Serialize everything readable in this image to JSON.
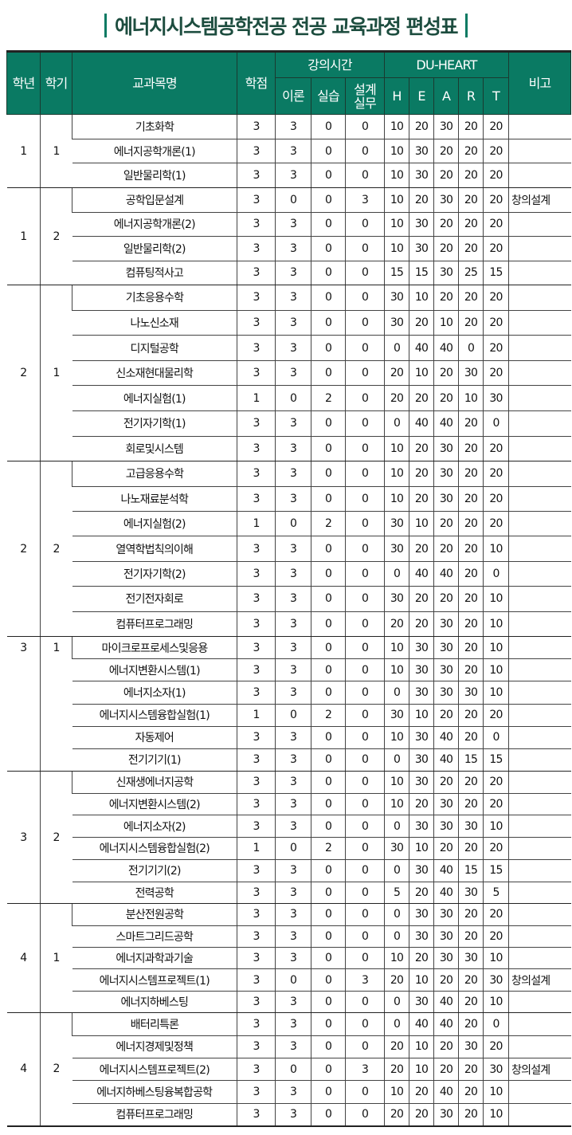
{
  "title": "에너지시스템공학전공 전공 교육과정 편성표",
  "colors": {
    "header_bg": "#0a7a63",
    "title": "#1d4d3f"
  },
  "headers": {
    "year": "학년",
    "semester": "학기",
    "course": "교과목명",
    "credits": "학점",
    "lecture_hours": "강의시간",
    "theory": "이론",
    "practice": "실습",
    "design": "설계실무",
    "du_heart": "DU-HEART",
    "H": "H",
    "E": "E",
    "A": "A",
    "R": "R",
    "T": "T",
    "note": "비고"
  },
  "groups": [
    {
      "year": "1",
      "semester": "1",
      "rows": [
        [
          "기초화학",
          "3",
          "3",
          "0",
          "0",
          "10",
          "20",
          "30",
          "20",
          "20",
          ""
        ],
        [
          "에너지공학개론(1)",
          "3",
          "3",
          "0",
          "0",
          "10",
          "30",
          "20",
          "20",
          "20",
          ""
        ],
        [
          "일반물리학(1)",
          "3",
          "3",
          "0",
          "0",
          "10",
          "30",
          "20",
          "20",
          "20",
          ""
        ]
      ]
    },
    {
      "year": "1",
      "semester": "2",
      "rows": [
        [
          "공학입문설계",
          "3",
          "0",
          "0",
          "3",
          "10",
          "20",
          "30",
          "20",
          "20",
          "창의설계"
        ],
        [
          "에너지공학개론(2)",
          "3",
          "3",
          "0",
          "0",
          "10",
          "30",
          "20",
          "20",
          "20",
          ""
        ],
        [
          "일반물리학(2)",
          "3",
          "3",
          "0",
          "0",
          "10",
          "30",
          "20",
          "20",
          "20",
          ""
        ],
        [
          "컴퓨팅적사고",
          "3",
          "3",
          "0",
          "0",
          "15",
          "15",
          "30",
          "25",
          "15",
          ""
        ]
      ]
    },
    {
      "year": "2",
      "semester": "1",
      "rows": [
        [
          "기초응용수학",
          "3",
          "3",
          "0",
          "0",
          "30",
          "10",
          "20",
          "20",
          "20",
          ""
        ],
        [
          "나노신소재",
          "3",
          "3",
          "0",
          "0",
          "30",
          "20",
          "10",
          "20",
          "20",
          ""
        ],
        [
          "디지털공학",
          "3",
          "3",
          "0",
          "0",
          "0",
          "40",
          "40",
          "0",
          "20",
          ""
        ],
        [
          "신소재현대물리학",
          "3",
          "3",
          "0",
          "0",
          "20",
          "10",
          "20",
          "30",
          "20",
          ""
        ],
        [
          "에너지실험(1)",
          "1",
          "0",
          "2",
          "0",
          "20",
          "20",
          "20",
          "10",
          "30",
          ""
        ],
        [
          "전기자기학(1)",
          "3",
          "3",
          "0",
          "0",
          "0",
          "40",
          "40",
          "20",
          "0",
          ""
        ],
        [
          "회로및시스템",
          "3",
          "3",
          "0",
          "0",
          "10",
          "20",
          "30",
          "20",
          "20",
          ""
        ]
      ]
    },
    {
      "year": "2",
      "semester": "2",
      "rows": [
        [
          "고급응용수학",
          "3",
          "3",
          "0",
          "0",
          "10",
          "20",
          "30",
          "20",
          "20",
          ""
        ],
        [
          "나노재료분석학",
          "3",
          "3",
          "0",
          "0",
          "10",
          "20",
          "30",
          "20",
          "20",
          ""
        ],
        [
          "에너지실험(2)",
          "1",
          "0",
          "2",
          "0",
          "30",
          "10",
          "20",
          "20",
          "20",
          ""
        ],
        [
          "열역학법칙의이해",
          "3",
          "3",
          "0",
          "0",
          "30",
          "20",
          "20",
          "20",
          "10",
          ""
        ],
        [
          "전기자기학(2)",
          "3",
          "3",
          "0",
          "0",
          "0",
          "40",
          "40",
          "20",
          "0",
          ""
        ],
        [
          "전기전자회로",
          "3",
          "3",
          "0",
          "0",
          "30",
          "20",
          "20",
          "20",
          "10",
          ""
        ],
        [
          "컴퓨터프로그래밍",
          "3",
          "3",
          "0",
          "0",
          "20",
          "20",
          "30",
          "20",
          "10",
          ""
        ]
      ]
    },
    {
      "year": "3",
      "semester": "1",
      "rows": [
        [
          "마이크로프로세스및응용",
          "3",
          "3",
          "0",
          "0",
          "10",
          "30",
          "30",
          "20",
          "10",
          ""
        ],
        [
          "에너지변환시스템(1)",
          "3",
          "3",
          "0",
          "0",
          "10",
          "30",
          "30",
          "20",
          "10",
          ""
        ],
        [
          "에너지소자(1)",
          "3",
          "3",
          "0",
          "0",
          "0",
          "30",
          "30",
          "30",
          "10",
          ""
        ],
        [
          "에너지시스템융합실험(1)",
          "1",
          "0",
          "2",
          "0",
          "30",
          "10",
          "20",
          "20",
          "20",
          ""
        ],
        [
          "자동제어",
          "3",
          "3",
          "0",
          "0",
          "10",
          "30",
          "40",
          "20",
          "0",
          ""
        ],
        [
          "전기기기(1)",
          "3",
          "3",
          "0",
          "0",
          "0",
          "30",
          "40",
          "15",
          "15",
          ""
        ]
      ]
    },
    {
      "year": "3",
      "semester": "2",
      "rows": [
        [
          "신재생에너지공학",
          "3",
          "3",
          "0",
          "0",
          "10",
          "30",
          "20",
          "20",
          "20",
          ""
        ],
        [
          "에너지변환시스템(2)",
          "3",
          "3",
          "0",
          "0",
          "10",
          "20",
          "30",
          "20",
          "20",
          ""
        ],
        [
          "에너지소자(2)",
          "3",
          "3",
          "0",
          "0",
          "0",
          "30",
          "30",
          "30",
          "10",
          ""
        ],
        [
          "에너지시스템융합실험(2)",
          "1",
          "0",
          "2",
          "0",
          "30",
          "10",
          "20",
          "20",
          "20",
          ""
        ],
        [
          "전기기기(2)",
          "3",
          "3",
          "0",
          "0",
          "0",
          "30",
          "40",
          "15",
          "15",
          ""
        ],
        [
          "전력공학",
          "3",
          "3",
          "0",
          "0",
          "5",
          "20",
          "40",
          "30",
          "5",
          ""
        ]
      ]
    },
    {
      "year": "4",
      "semester": "1",
      "rows": [
        [
          "분산전원공학",
          "3",
          "3",
          "0",
          "0",
          "0",
          "30",
          "30",
          "20",
          "20",
          ""
        ],
        [
          "스마트그리드공학",
          "3",
          "3",
          "0",
          "0",
          "0",
          "30",
          "30",
          "20",
          "20",
          ""
        ],
        [
          "에너지과학과기술",
          "3",
          "3",
          "0",
          "0",
          "10",
          "20",
          "30",
          "30",
          "10",
          ""
        ],
        [
          "에너지시스템프로젝트(1)",
          "3",
          "0",
          "0",
          "3",
          "20",
          "10",
          "20",
          "20",
          "30",
          "창의설계"
        ],
        [
          "에너지하베스팅",
          "3",
          "3",
          "0",
          "0",
          "0",
          "30",
          "40",
          "20",
          "10",
          ""
        ]
      ]
    },
    {
      "year": "4",
      "semester": "2",
      "rows": [
        [
          "배터리특론",
          "3",
          "3",
          "0",
          "0",
          "0",
          "40",
          "40",
          "20",
          "0",
          ""
        ],
        [
          "에너지경제및정책",
          "3",
          "3",
          "0",
          "0",
          "20",
          "10",
          "20",
          "30",
          "20",
          ""
        ],
        [
          "에너지시스템프로젝트(2)",
          "3",
          "0",
          "0",
          "3",
          "20",
          "10",
          "20",
          "20",
          "30",
          "창의설계"
        ],
        [
          "에너지하베스팅융복합공학",
          "3",
          "3",
          "0",
          "0",
          "10",
          "20",
          "40",
          "20",
          "10",
          ""
        ],
        [
          "컴퓨터프로그래밍",
          "3",
          "3",
          "0",
          "0",
          "20",
          "20",
          "30",
          "20",
          "10",
          ""
        ]
      ]
    }
  ]
}
